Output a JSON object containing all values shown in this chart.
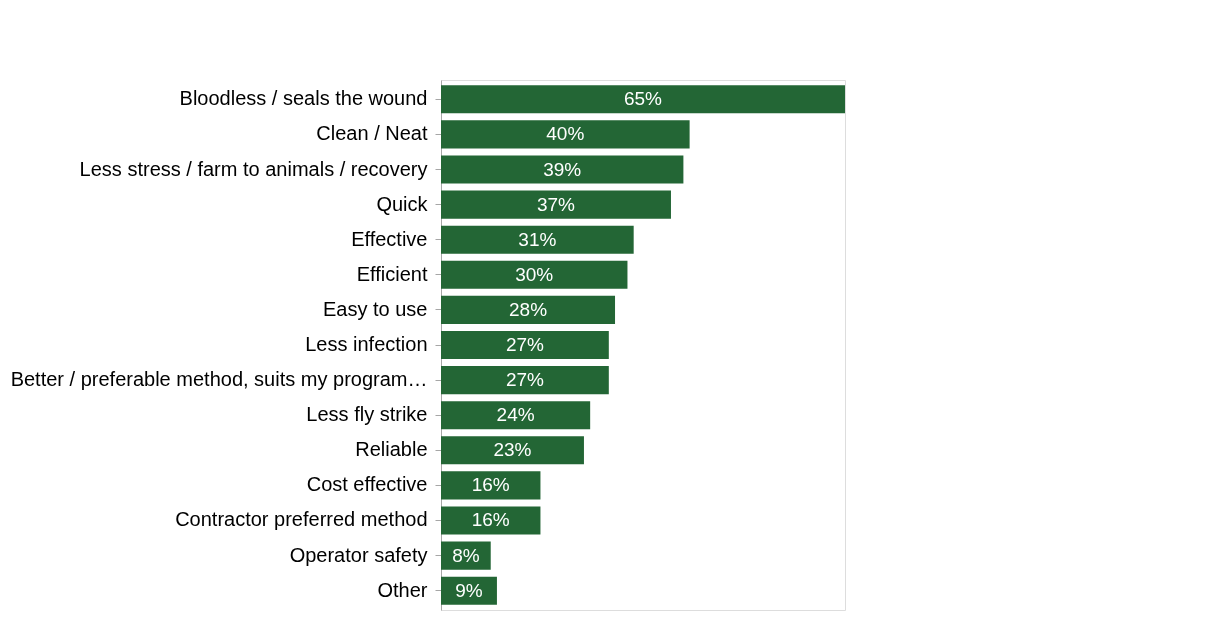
{
  "chart_data": {
    "type": "bar",
    "orientation": "horizontal",
    "categories": [
      "Bloodless / seals the wound",
      "Clean / Neat",
      "Less stress / farm to animals / recovery",
      "Quick",
      "Effective",
      "Efficient",
      "Easy to use",
      "Less infection",
      "Better / preferable method, suits my program…",
      "Less fly strike",
      "Reliable",
      "Cost effective",
      "Contractor preferred method",
      "Operator safety",
      "Other"
    ],
    "values": [
      65,
      40,
      39,
      37,
      31,
      30,
      28,
      27,
      27,
      24,
      23,
      16,
      16,
      8,
      9
    ],
    "value_labels": [
      "65%",
      "40%",
      "39%",
      "37%",
      "31%",
      "30%",
      "28%",
      "27%",
      "27%",
      "24%",
      "23%",
      "16%",
      "16%",
      "8%",
      "9%"
    ],
    "color": "#236635"
  }
}
